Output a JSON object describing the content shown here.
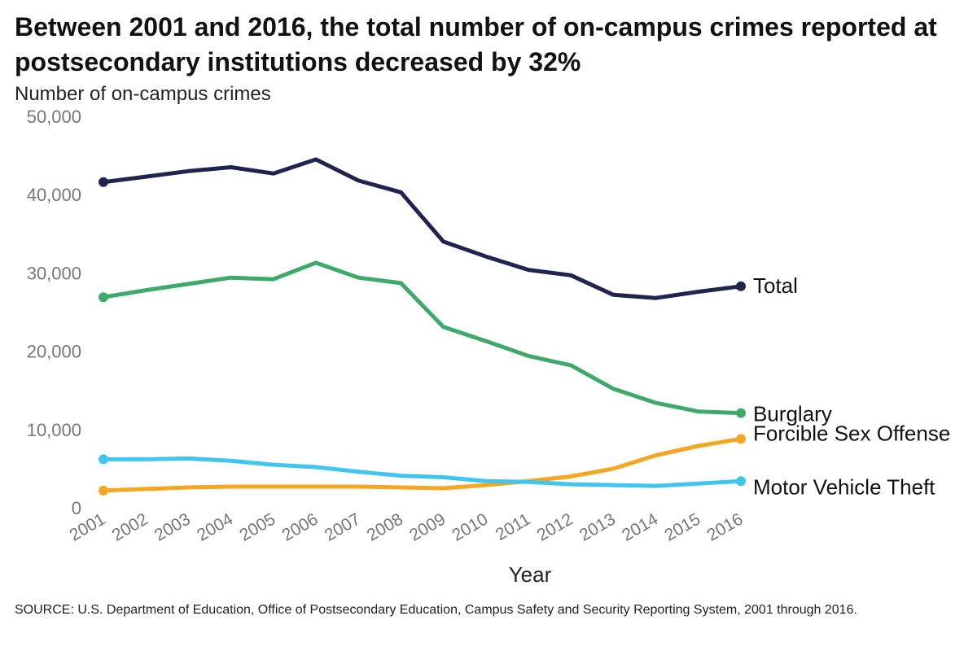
{
  "title": "Between 2001 and 2016, the total number of on-campus crimes reported at postsecondary institutions decreased by 32%",
  "subtitle": "Number of on-campus crimes",
  "source": "SOURCE: U.S. Department of Education, Office of Postsecondary Education, Campus Safety and Security Reporting System, 2001 through 2016.",
  "chart_data": {
    "type": "line",
    "title": "Between 2001 and 2016, the total number of on-campus crimes reported at postsecondary institutions decreased by 32%",
    "ylabel": "Number of on-campus crimes",
    "xlabel": "Year",
    "x": [
      "2001",
      "2002",
      "2003",
      "2004",
      "2005",
      "2006",
      "2007",
      "2008",
      "2009",
      "2010",
      "2011",
      "2012",
      "2013",
      "2014",
      "2015",
      "2016"
    ],
    "ylim": [
      0,
      50000
    ],
    "yticks": [
      0,
      10000,
      20000,
      30000,
      40000,
      50000
    ],
    "ytick_labels": [
      "0",
      "10,000",
      "20,000",
      "30,000",
      "40,000",
      "50,000"
    ],
    "grid": false,
    "series": [
      {
        "name": "Total",
        "color": "#1f2550",
        "values": [
          41600,
          42300,
          43000,
          43500,
          42700,
          44500,
          41800,
          40300,
          34000,
          32100,
          30400,
          29700,
          27200,
          26800,
          27600,
          28300
        ]
      },
      {
        "name": "Burglary",
        "color": "#3eaa6a",
        "values": [
          26900,
          27800,
          28600,
          29400,
          29200,
          31300,
          29400,
          28700,
          23100,
          21300,
          19400,
          18200,
          15200,
          13400,
          12300,
          12100
        ]
      },
      {
        "name": "Forcible Sex Offense",
        "color": "#f5a623",
        "values": [
          2200,
          2400,
          2600,
          2700,
          2700,
          2700,
          2700,
          2600,
          2500,
          2900,
          3400,
          4000,
          5000,
          6700,
          7900,
          8800
        ]
      },
      {
        "name": "Motor Vehicle Theft",
        "color": "#40c4f0",
        "values": [
          6200,
          6200,
          6300,
          6000,
          5500,
          5200,
          4600,
          4100,
          3900,
          3400,
          3300,
          3000,
          2900,
          2800,
          3100,
          3400
        ]
      }
    ]
  }
}
